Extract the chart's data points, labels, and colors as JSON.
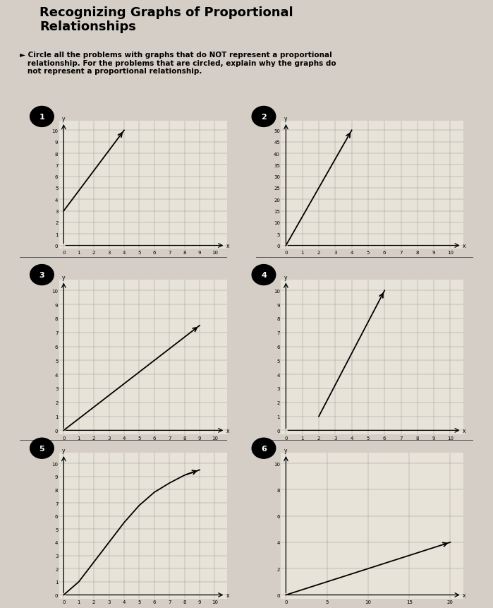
{
  "title": "Recognizing Graphs of Proportional\nRelationships",
  "instruction": "► Circle all the problems with graphs that do NOT represent a proportional\n   relationship. For the problems that are circled, explain why the graphs do\n   not represent a proportional relationship.",
  "background_color": "#d4cec6",
  "graph_bg": "#e8e3d8",
  "graphs": [
    {
      "id": 1,
      "xlim": [
        0,
        10
      ],
      "ylim": [
        0,
        10
      ],
      "xticks": [
        0,
        1,
        2,
        3,
        4,
        5,
        6,
        7,
        8,
        9,
        10
      ],
      "yticks": [
        0,
        1,
        2,
        3,
        4,
        5,
        6,
        7,
        8,
        9,
        10
      ],
      "line": [
        [
          0,
          3
        ],
        [
          4,
          10
        ]
      ],
      "curve": false,
      "row": 0,
      "col": 0
    },
    {
      "id": 2,
      "xlim": [
        0,
        10
      ],
      "ylim": [
        0,
        50
      ],
      "xticks": [
        0,
        1,
        2,
        3,
        4,
        5,
        6,
        7,
        8,
        9,
        10
      ],
      "yticks": [
        0,
        5,
        10,
        15,
        20,
        25,
        30,
        35,
        40,
        45,
        50
      ],
      "line": [
        [
          0,
          0
        ],
        [
          4,
          50
        ]
      ],
      "curve": false,
      "row": 0,
      "col": 1
    },
    {
      "id": 3,
      "xlim": [
        0,
        10
      ],
      "ylim": [
        0,
        10
      ],
      "xticks": [
        0,
        1,
        2,
        3,
        4,
        5,
        6,
        7,
        8,
        9,
        10
      ],
      "yticks": [
        0,
        1,
        2,
        3,
        4,
        5,
        6,
        7,
        8,
        9,
        10
      ],
      "line": [
        [
          0,
          0
        ],
        [
          9,
          7.5
        ]
      ],
      "curve": false,
      "row": 1,
      "col": 0
    },
    {
      "id": 4,
      "xlim": [
        0,
        10
      ],
      "ylim": [
        0,
        10
      ],
      "xticks": [
        0,
        1,
        2,
        3,
        4,
        5,
        6,
        7,
        8,
        9,
        10
      ],
      "yticks": [
        0,
        1,
        2,
        3,
        4,
        5,
        6,
        7,
        8,
        9,
        10
      ],
      "line": [
        [
          2,
          1
        ],
        [
          6,
          10
        ]
      ],
      "curve": false,
      "row": 1,
      "col": 1
    },
    {
      "id": 5,
      "xlim": [
        0,
        10
      ],
      "ylim": [
        0,
        10
      ],
      "xticks": [
        0,
        1,
        2,
        3,
        4,
        5,
        6,
        7,
        8,
        9,
        10
      ],
      "yticks": [
        0,
        1,
        2,
        3,
        4,
        5,
        6,
        7,
        8,
        9,
        10
      ],
      "curve": true,
      "curve_pts": [
        [
          0,
          0
        ],
        [
          1,
          1
        ],
        [
          2,
          2.5
        ],
        [
          3,
          4
        ],
        [
          4,
          5.5
        ],
        [
          5,
          6.8
        ],
        [
          6,
          7.8
        ],
        [
          7,
          8.5
        ],
        [
          8,
          9.1
        ],
        [
          9,
          9.5
        ]
      ],
      "row": 2,
      "col": 0
    },
    {
      "id": 6,
      "xlim": [
        0,
        20
      ],
      "ylim": [
        0,
        10
      ],
      "xticks": [
        0,
        5,
        10,
        15,
        20
      ],
      "yticks": [
        0,
        2,
        4,
        6,
        8,
        10
      ],
      "line": [
        [
          0,
          0
        ],
        [
          20,
          4
        ]
      ],
      "curve": false,
      "row": 2,
      "col": 1
    }
  ]
}
